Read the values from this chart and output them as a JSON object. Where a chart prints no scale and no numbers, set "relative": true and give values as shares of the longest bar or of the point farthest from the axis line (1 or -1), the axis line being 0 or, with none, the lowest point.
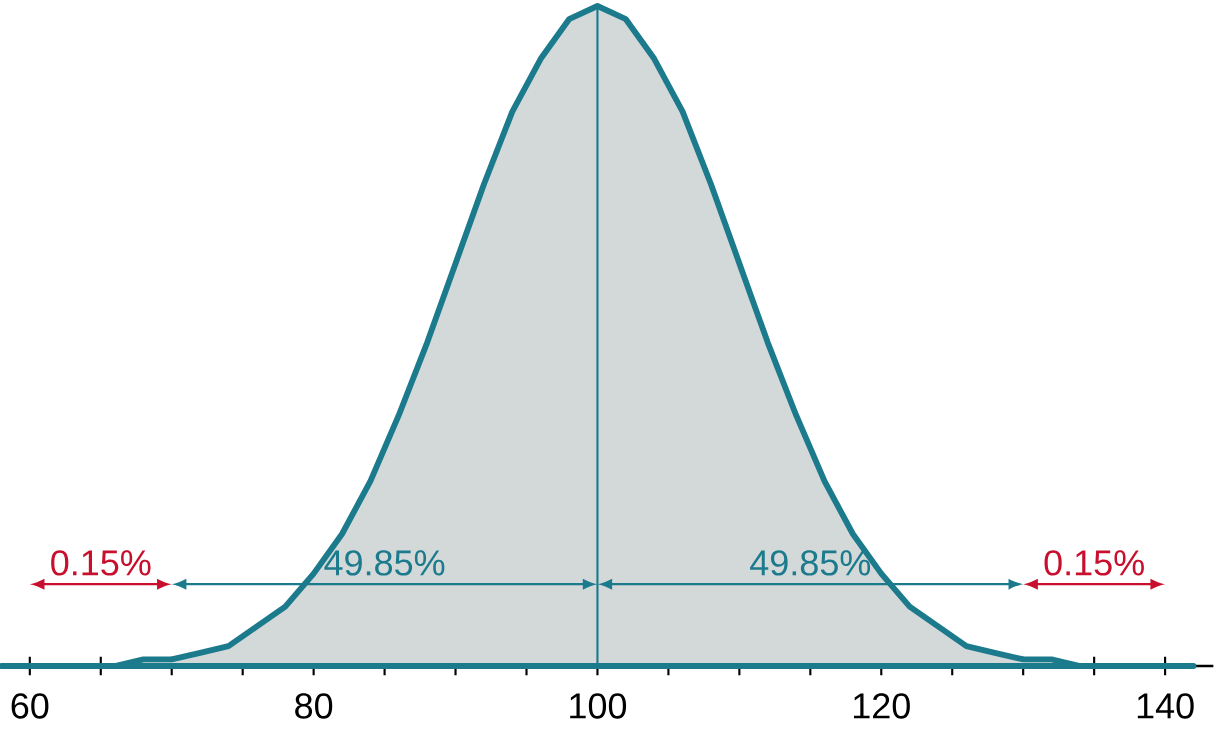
{
  "chart_data": {
    "type": "area",
    "relative": true,
    "x": [
      58,
      60,
      62,
      64,
      66,
      68,
      70,
      72,
      74,
      76,
      78,
      80,
      82,
      84,
      86,
      88,
      90,
      92,
      94,
      96,
      98,
      100,
      102,
      104,
      106,
      108,
      110,
      112,
      114,
      116,
      118,
      120,
      122,
      124,
      126,
      128,
      130,
      132,
      134,
      136,
      138,
      140,
      142
    ],
    "series": [
      {
        "color": "#1b7a8c",
        "values": [
          0,
          0,
          0,
          0,
          0,
          0.01,
          0.01,
          0.02,
          0.03,
          0.06,
          0.09,
          0.14,
          0.2,
          0.28,
          0.38,
          0.49,
          0.61,
          0.73,
          0.84,
          0.92,
          0.98,
          1,
          0.98,
          0.92,
          0.84,
          0.73,
          0.61,
          0.49,
          0.38,
          0.28,
          0.2,
          0.14,
          0.09,
          0.06,
          0.03,
          0.02,
          0.01,
          0.01,
          0,
          0,
          0,
          0,
          0
        ]
      }
    ],
    "xlim": [
      57.9,
      143.4
    ],
    "xticks": [
      60,
      {
        "value": 65,
        "label": null
      },
      {
        "value": 70,
        "label": null
      },
      {
        "value": 75,
        "label": null
      },
      80,
      {
        "value": 85,
        "label": null
      },
      {
        "value": 90,
        "label": null
      },
      {
        "value": 95,
        "label": null
      },
      100,
      {
        "value": 105,
        "label": null
      },
      {
        "value": 110,
        "label": null
      },
      {
        "value": 115,
        "label": null
      },
      120,
      {
        "value": 125,
        "label": null
      },
      {
        "value": 130,
        "label": null
      },
      {
        "value": 135,
        "label": null
      },
      140
    ],
    "ref_lines": [
      {
        "axis": "x",
        "value": 100,
        "color": "#1b7a8c"
      }
    ],
    "annotations": [
      "0.15%",
      "49.85%",
      "49.85%",
      "0.15%"
    ],
    "grid": false,
    "marker": "none",
    "line_style": "solid"
  }
}
